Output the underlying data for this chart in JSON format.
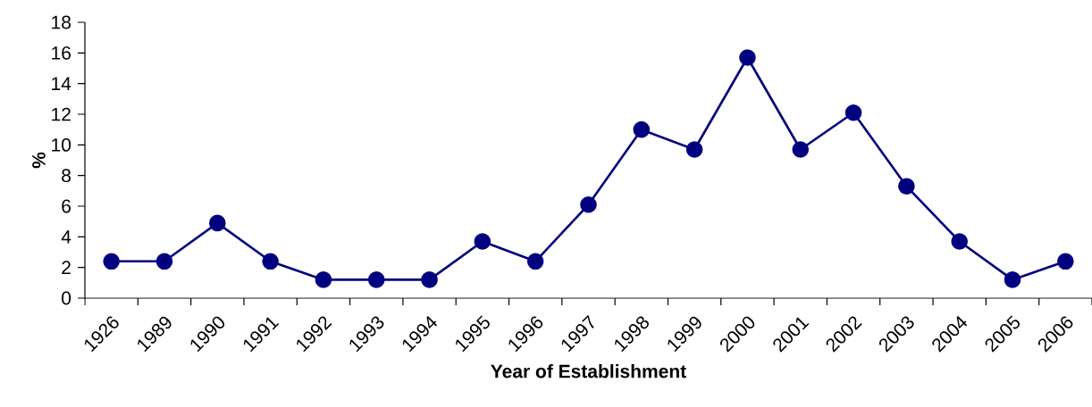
{
  "chart_data": {
    "type": "line",
    "xlabel": "Year of Establishment",
    "ylabel": "%",
    "categories": [
      "1926",
      "1989",
      "1990",
      "1991",
      "1992",
      "1993",
      "1994",
      "1995",
      "1996",
      "1997",
      "1998",
      "1999",
      "2000",
      "2001",
      "2002",
      "2003",
      "2004",
      "2005",
      "2006"
    ],
    "values": [
      2.4,
      2.4,
      4.9,
      2.4,
      1.2,
      1.2,
      1.2,
      3.7,
      2.4,
      6.1,
      11.0,
      9.7,
      15.7,
      9.7,
      12.1,
      7.3,
      3.7,
      1.2,
      2.4
    ],
    "color": "#000080",
    "marker": "circle",
    "line_style": "solid",
    "ylim": [
      0,
      18
    ],
    "yticks": [
      0,
      2,
      4,
      6,
      8,
      10,
      12,
      14,
      16,
      18
    ]
  }
}
